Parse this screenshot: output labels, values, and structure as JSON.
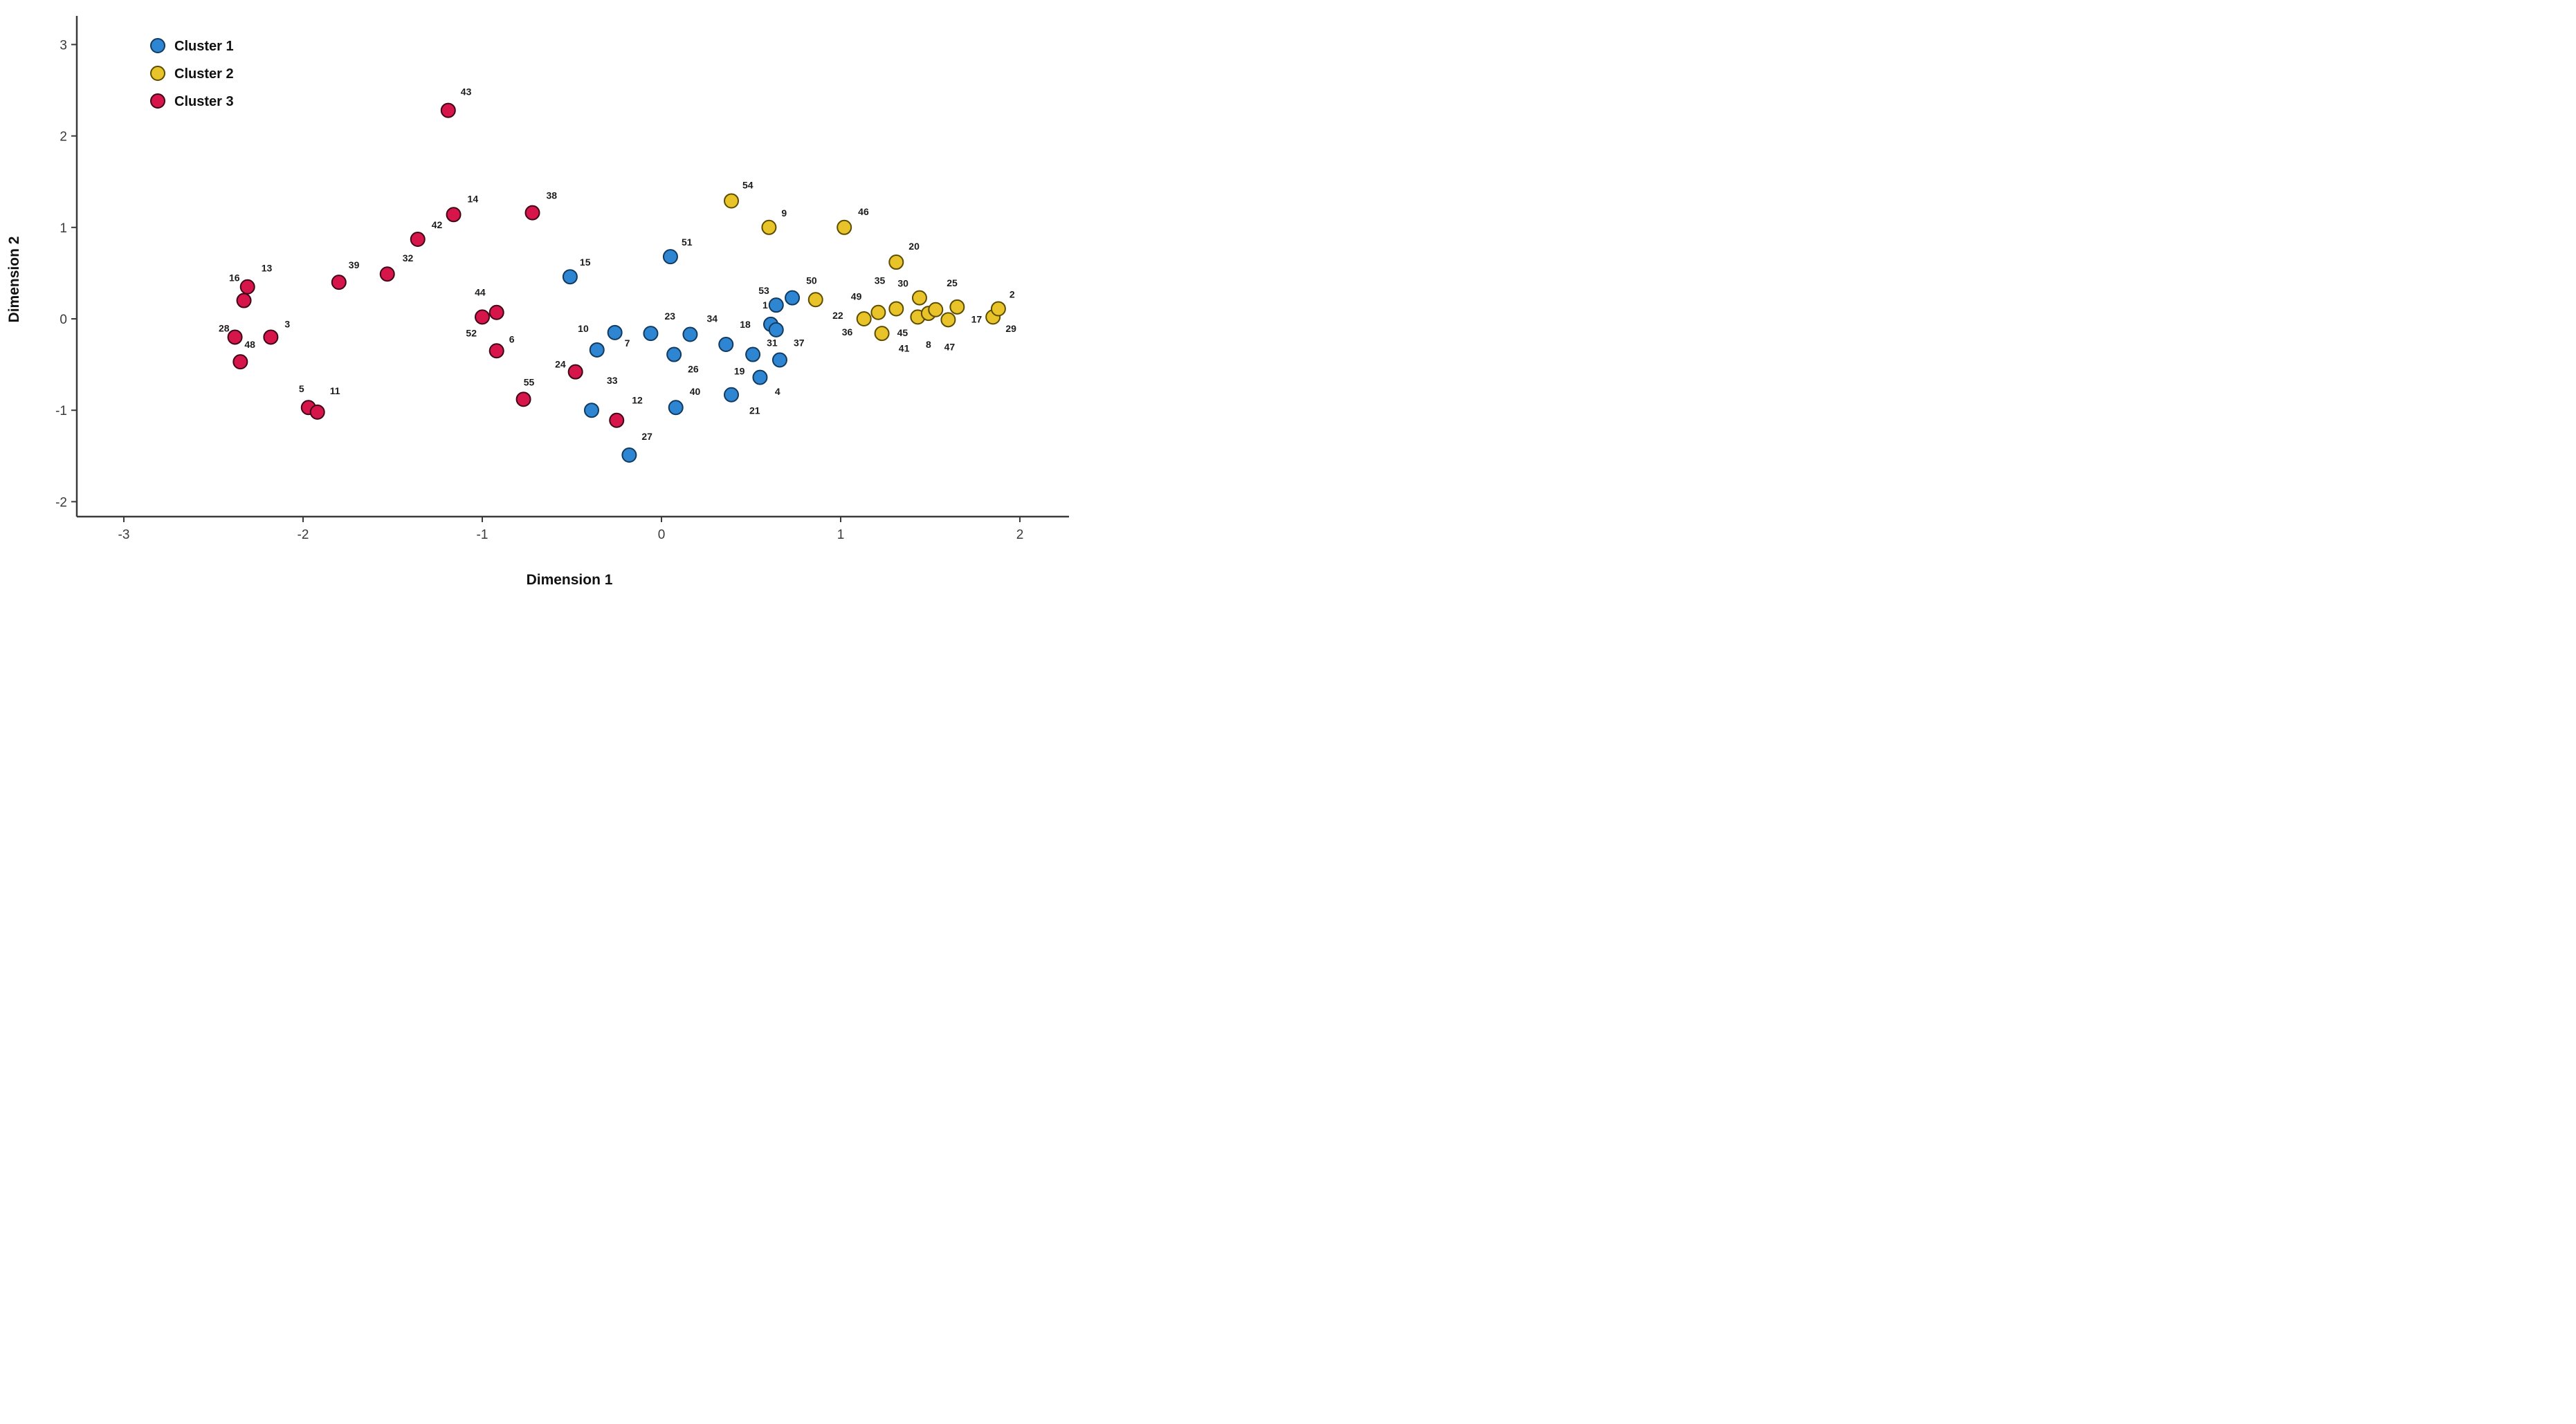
{
  "chart_data": {
    "type": "scatter",
    "title": "",
    "xlabel": "Dimension 1",
    "ylabel": "Dimension 2",
    "xlim": [
      -3.26,
      2.27
    ],
    "ylim": [
      -2.16,
      3.31
    ],
    "xticks": [
      "-3",
      "-2",
      "-1",
      "0",
      "1",
      "2"
    ],
    "xtick_values": [
      -3,
      -2,
      -1,
      0,
      1,
      2
    ],
    "yticks": [
      "3",
      "2",
      "1",
      "0",
      "-1",
      "-2"
    ],
    "ytick_values": [
      3,
      2,
      1,
      0,
      -1,
      -2
    ],
    "grid": false,
    "legend_position": "top-left",
    "marker": {
      "radius": 10,
      "stroke_width": 2
    },
    "series": [
      {
        "name": "Cluster 1",
        "color": "#2E86D2",
        "stroke": "#123A5E",
        "points": [
          {
            "id": "51",
            "x": 0.05,
            "y": 0.68,
            "dx": 16,
            "dy": -16,
            "anchor": "start"
          },
          {
            "id": "15",
            "x": -0.51,
            "y": 0.46,
            "dx": 14,
            "dy": -16,
            "anchor": "start"
          },
          {
            "id": "1",
            "x": 0.64,
            "y": 0.15,
            "dx": -12,
            "dy": 5,
            "anchor": "end"
          },
          {
            "id": "50",
            "x": 0.73,
            "y": 0.23,
            "dx": 20,
            "dy": -20,
            "anchor": "start"
          },
          {
            "id": "53",
            "x": 0.61,
            "y": -0.06,
            "dx": -10,
            "dy": -44,
            "anchor": "middle"
          },
          {
            "id": "4",
            "x": 0.64,
            "y": -0.12,
            "dx": 2,
            "dy": 94,
            "anchor": "middle"
          },
          {
            "id": "7",
            "x": -0.26,
            "y": -0.15,
            "dx": 14,
            "dy": 20,
            "anchor": "start"
          },
          {
            "id": "23",
            "x": -0.06,
            "y": -0.16,
            "dx": 20,
            "dy": -20,
            "anchor": "start"
          },
          {
            "id": "34",
            "x": 0.16,
            "y": -0.17,
            "dx": 24,
            "dy": -18,
            "anchor": "start"
          },
          {
            "id": "10",
            "x": -0.36,
            "y": -0.34,
            "dx": -12,
            "dy": -26,
            "anchor": "end"
          },
          {
            "id": "18",
            "x": 0.36,
            "y": -0.28,
            "dx": 20,
            "dy": -24,
            "anchor": "start"
          },
          {
            "id": "31",
            "x": 0.51,
            "y": -0.39,
            "dx": 20,
            "dy": -12,
            "anchor": "start"
          },
          {
            "id": "37",
            "x": 0.66,
            "y": -0.45,
            "dx": 20,
            "dy": -20,
            "anchor": "start"
          },
          {
            "id": "26",
            "x": 0.07,
            "y": -0.39,
            "dx": 20,
            "dy": 26,
            "anchor": "start"
          },
          {
            "id": "19",
            "x": 0.55,
            "y": -0.64,
            "dx": -22,
            "dy": -4,
            "anchor": "end"
          },
          {
            "id": "21",
            "x": 0.39,
            "y": -0.83,
            "dx": 26,
            "dy": 28,
            "anchor": "start"
          },
          {
            "id": "40",
            "x": 0.08,
            "y": -0.97,
            "dx": 20,
            "dy": -18,
            "anchor": "start"
          },
          {
            "id": "33",
            "x": -0.39,
            "y": -1.0,
            "dx": 22,
            "dy": -38,
            "anchor": "start"
          },
          {
            "id": "12b",
            "hidden": true,
            "x": 0,
            "y": 0,
            "dx": 0,
            "dy": 0,
            "anchor": "start"
          },
          {
            "id": "27",
            "x": -0.18,
            "y": -1.49,
            "dx": 18,
            "dy": -22,
            "anchor": "start"
          }
        ]
      },
      {
        "name": "Cluster 2",
        "color": "#E8C32A",
        "stroke": "#5C4C00",
        "points": [
          {
            "id": "54",
            "x": 0.39,
            "y": 1.29,
            "dx": 16,
            "dy": -18,
            "anchor": "start"
          },
          {
            "id": "9",
            "x": 0.6,
            "y": 1.0,
            "dx": 18,
            "dy": -16,
            "anchor": "start"
          },
          {
            "id": "46",
            "x": 1.02,
            "y": 1.0,
            "dx": 20,
            "dy": -18,
            "anchor": "start"
          },
          {
            "id": "20",
            "x": 1.31,
            "y": 0.62,
            "dx": 18,
            "dy": -18,
            "anchor": "start"
          },
          {
            "id": "22",
            "x": 1.13,
            "y": 0.0,
            "dx": -30,
            "dy": 0,
            "anchor": "end"
          },
          {
            "id": "49",
            "x": 1.21,
            "y": 0.07,
            "dx": -24,
            "dy": -18,
            "anchor": "end"
          },
          {
            "id": "35",
            "x": 1.31,
            "y": 0.11,
            "dx": -16,
            "dy": -36,
            "anchor": "end"
          },
          {
            "id": "30",
            "x": 1.44,
            "y": 0.23,
            "dx": -16,
            "dy": -16,
            "anchor": "end"
          },
          {
            "id": "41",
            "x": 1.43,
            "y": 0.02,
            "dx": -12,
            "dy": 50,
            "anchor": "end"
          },
          {
            "id": "8",
            "x": 1.49,
            "y": 0.06,
            "dx": 0,
            "dy": 50,
            "anchor": "middle"
          },
          {
            "id": "25",
            "x": 1.53,
            "y": 0.1,
            "dx": 16,
            "dy": -34,
            "anchor": "start"
          },
          {
            "id": "47",
            "x": 1.6,
            "y": -0.01,
            "dx": 2,
            "dy": 44,
            "anchor": "middle"
          },
          {
            "id": "29",
            "x": 1.65,
            "y": 0.13,
            "dx": 70,
            "dy": 36,
            "anchor": "start"
          },
          {
            "id": "36",
            "x": 0.86,
            "y": 0.21,
            "dx": 38,
            "dy": 52,
            "anchor": "start"
          },
          {
            "id": "45",
            "x": 1.23,
            "y": -0.16,
            "dx": 22,
            "dy": 4,
            "anchor": "start"
          },
          {
            "id": "17",
            "x": 1.85,
            "y": 0.02,
            "dx": -16,
            "dy": 8,
            "anchor": "end"
          },
          {
            "id": "2",
            "x": 1.88,
            "y": 0.11,
            "dx": 16,
            "dy": -16,
            "anchor": "start"
          }
        ]
      },
      {
        "name": "Cluster 3",
        "color": "#D6164A",
        "stroke": "#3F0618",
        "points": [
          {
            "id": "43",
            "x": -1.19,
            "y": 2.28,
            "dx": 18,
            "dy": -22,
            "anchor": "start"
          },
          {
            "id": "14",
            "x": -1.16,
            "y": 1.14,
            "dx": 20,
            "dy": -18,
            "anchor": "start"
          },
          {
            "id": "38",
            "x": -0.72,
            "y": 1.16,
            "dx": 20,
            "dy": -20,
            "anchor": "start"
          },
          {
            "id": "42",
            "x": -1.36,
            "y": 0.87,
            "dx": 20,
            "dy": -16,
            "anchor": "start"
          },
          {
            "id": "32",
            "x": -1.53,
            "y": 0.49,
            "dx": 22,
            "dy": -18,
            "anchor": "start"
          },
          {
            "id": "39",
            "x": -1.8,
            "y": 0.4,
            "dx": 14,
            "dy": -20,
            "anchor": "start"
          },
          {
            "id": "13",
            "x": -2.31,
            "y": 0.35,
            "dx": 20,
            "dy": -22,
            "anchor": "start"
          },
          {
            "id": "16",
            "x": -2.33,
            "y": 0.2,
            "dx": -6,
            "dy": -28,
            "anchor": "end"
          },
          {
            "id": "28",
            "x": -2.38,
            "y": -0.2,
            "dx": -8,
            "dy": -8,
            "anchor": "end"
          },
          {
            "id": "3",
            "x": -2.18,
            "y": -0.2,
            "dx": 20,
            "dy": -14,
            "anchor": "start"
          },
          {
            "id": "48",
            "x": -2.35,
            "y": -0.47,
            "dx": 6,
            "dy": -20,
            "anchor": "start"
          },
          {
            "id": "5",
            "x": -1.97,
            "y": -0.97,
            "dx": -10,
            "dy": -22,
            "anchor": "middle"
          },
          {
            "id": "11",
            "x": -1.92,
            "y": -1.02,
            "dx": 18,
            "dy": -26,
            "anchor": "start"
          },
          {
            "id": "44",
            "x": -0.92,
            "y": 0.07,
            "dx": -16,
            "dy": -24,
            "anchor": "end"
          },
          {
            "id": "52",
            "x": -1.0,
            "y": 0.02,
            "dx": -8,
            "dy": 28,
            "anchor": "end"
          },
          {
            "id": "6",
            "x": -0.92,
            "y": -0.35,
            "dx": 18,
            "dy": -12,
            "anchor": "start"
          },
          {
            "id": "24",
            "x": -0.48,
            "y": -0.58,
            "dx": -14,
            "dy": -6,
            "anchor": "end"
          },
          {
            "id": "55",
            "x": -0.77,
            "y": -0.88,
            "dx": 8,
            "dy": -20,
            "anchor": "middle"
          },
          {
            "id": "12",
            "x": -0.25,
            "y": -1.11,
            "dx": 22,
            "dy": -24,
            "anchor": "start"
          }
        ]
      }
    ]
  },
  "legend": {
    "items": [
      {
        "label": "Cluster 1",
        "color": "#2E86D2",
        "stroke": "#123A5E"
      },
      {
        "label": "Cluster 2",
        "color": "#E8C32A",
        "stroke": "#5C4C00"
      },
      {
        "label": "Cluster 3",
        "color": "#D6164A",
        "stroke": "#3F0618"
      }
    ]
  },
  "axes": {
    "x_title": "Dimension 1",
    "y_title": "Dimension 2"
  }
}
